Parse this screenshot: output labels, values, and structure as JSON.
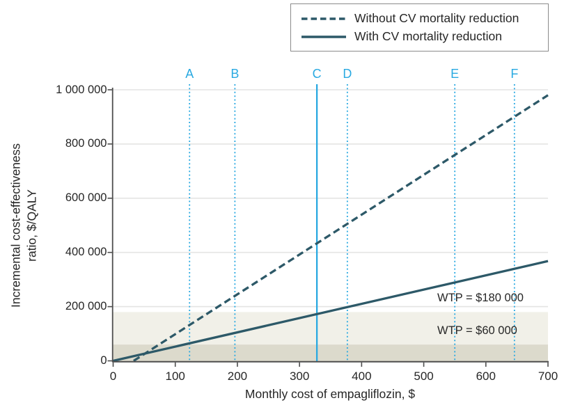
{
  "legend": {
    "items": [
      {
        "label": "Without CV mortality reduction",
        "style": "dashed"
      },
      {
        "label": "With CV mortality reduction",
        "style": "solid"
      }
    ]
  },
  "colors": {
    "series": "#2d5968",
    "marker": "#29a9e1",
    "band_low": "#dcdacc",
    "band_high": "#f1f0e8",
    "gridline": "#e4e4e3",
    "axis": "#4d4d4d",
    "text": "#262626",
    "legend_border": "#8b8b8b"
  },
  "chart_data": {
    "type": "line",
    "title": "",
    "xlabel": "Monthly cost of empagliflozin, $",
    "ylabel_line1": "Incremental cost-effectiveness",
    "ylabel_line2": "ratio, $/QALY",
    "xlim": [
      0,
      700
    ],
    "ylim": [
      0,
      1000000
    ],
    "grid": true,
    "legend_position": "top-right",
    "xticks": [
      {
        "value": 0,
        "label": "0"
      },
      {
        "value": 100,
        "label": "100"
      },
      {
        "value": 200,
        "label": "200"
      },
      {
        "value": 300,
        "label": "300"
      },
      {
        "value": 400,
        "label": "400"
      },
      {
        "value": 500,
        "label": "500"
      },
      {
        "value": 600,
        "label": "600"
      },
      {
        "value": 700,
        "label": "700"
      }
    ],
    "yticks": [
      {
        "value": 0,
        "label": "0"
      },
      {
        "value": 200000,
        "label": "200 000"
      },
      {
        "value": 400000,
        "label": "400 000"
      },
      {
        "value": 600000,
        "label": "600 000"
      },
      {
        "value": 800000,
        "label": "800 000"
      },
      {
        "value": 1000000,
        "label": "1 000 000"
      }
    ],
    "series": [
      {
        "name": "Without CV mortality reduction",
        "style": "dashed",
        "points": [
          [
            33,
            0
          ],
          [
            700,
            980000
          ]
        ]
      },
      {
        "name": "With CV mortality reduction",
        "style": "solid",
        "points": [
          [
            0,
            0
          ],
          [
            700,
            368000
          ]
        ]
      }
    ],
    "markers": [
      {
        "label": "A",
        "x": 123,
        "line": "dotted"
      },
      {
        "label": "B",
        "x": 196,
        "line": "dotted"
      },
      {
        "label": "C",
        "x": 328,
        "line": "solid"
      },
      {
        "label": "D",
        "x": 377,
        "line": "dotted"
      },
      {
        "label": "E",
        "x": 550,
        "line": "dotted"
      },
      {
        "label": "F",
        "x": 646,
        "line": "dotted"
      }
    ],
    "wtp_thresholds": [
      {
        "value": 60000,
        "label": "WTP = $60 000"
      },
      {
        "value": 180000,
        "label": "WTP = $180 000"
      }
    ]
  }
}
